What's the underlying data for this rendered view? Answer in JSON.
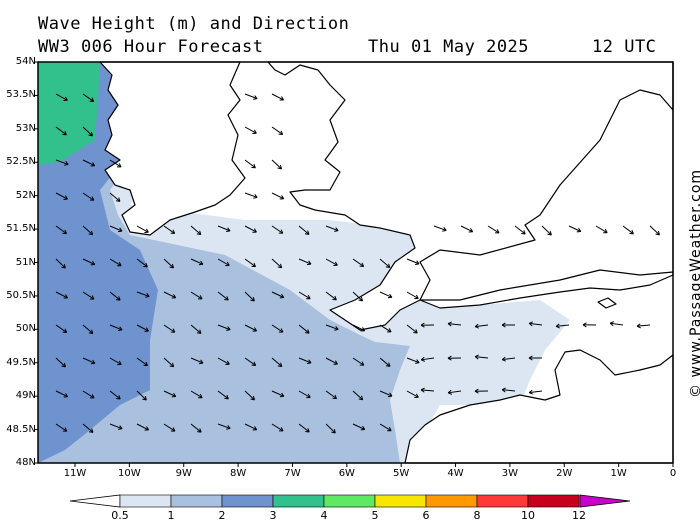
{
  "header": {
    "title": "Wave Height (m) and Direction",
    "model": "WW3 006 Hour Forecast",
    "date": "Thu 01 May 2025",
    "time": "12 UTC"
  },
  "credit": "© www.PassageWeather.com",
  "lat_labels": [
    "54N",
    "53.5N",
    "53N",
    "52.5N",
    "52N",
    "51.5N",
    "51N",
    "50.5N",
    "50N",
    "49.5N",
    "49N",
    "48.5N",
    "48N"
  ],
  "lon_labels": [
    "11W",
    "10W",
    "9W",
    "8W",
    "7W",
    "6W",
    "5W",
    "4W",
    "3W",
    "2W",
    "1W",
    "0"
  ],
  "scale": {
    "labels": [
      "0.5",
      "1",
      "2",
      "3",
      "4",
      "5",
      "6",
      "8",
      "10",
      "12"
    ],
    "colors": [
      "#dce6f2",
      "#a9c0df",
      "#6f93cf",
      "#32c08c",
      "#5fe861",
      "#f6e600",
      "#ff9900",
      "#ff3838",
      "#c8001e",
      "#c800c8"
    ]
  },
  "colors": {
    "band_0_5": "#dce6f2",
    "band_1": "#a9c0df",
    "band_2": "#6f93cf",
    "band_3": "#32c08c"
  }
}
